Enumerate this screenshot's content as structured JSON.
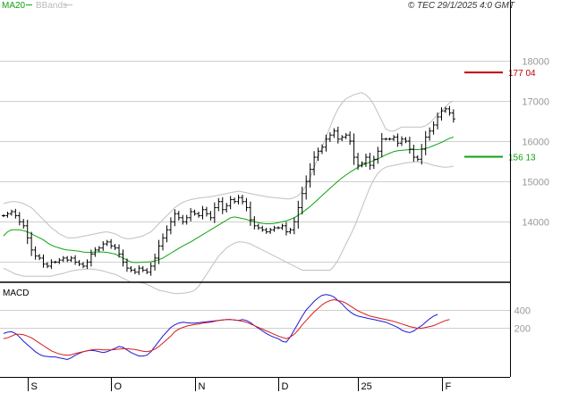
{
  "header": {
    "legend_ma": "MA20",
    "legend_bbands": "BBands",
    "copyright": "© TEC 29/1/2025 4:0 GMT"
  },
  "colors": {
    "bars": "#000000",
    "ma20": "#0fa30f",
    "bbands": "#c0c0c0",
    "resistance": "#c00000",
    "support": "#0fa30f",
    "macd_line": "#1a1ad8",
    "signal_line": "#d81a1a",
    "grid": "#cfcfcf",
    "axis": "#000000",
    "tick_text": "#999999"
  },
  "chart_data": [
    {
      "type": "ohlc",
      "panel": "price",
      "ylim": [
        12500,
        19500
      ],
      "y_ticks": [
        13000,
        14000,
        15000,
        16000,
        17000,
        18000
      ],
      "y_tick_labels": [
        "",
        "14000",
        "15000",
        "16000",
        "17000",
        "18000"
      ],
      "series": [
        {
          "name": "Price",
          "kind": "ohlc",
          "color_key": "bars",
          "close": [
            14150,
            14200,
            14250,
            14150,
            14000,
            13900,
            13600,
            13300,
            13150,
            13100,
            12950,
            12900,
            13000,
            13000,
            13050,
            13100,
            13050,
            13100,
            13000,
            12950,
            12900,
            13000,
            13200,
            13300,
            13350,
            13450,
            13500,
            13400,
            13350,
            13200,
            13000,
            12850,
            12800,
            12750,
            12850,
            12800,
            12750,
            12900,
            13100,
            13400,
            13600,
            13800,
            14000,
            14200,
            14100,
            14000,
            14100,
            14250,
            14200,
            14150,
            14300,
            14200,
            14100,
            14350,
            14500,
            14300,
            14400,
            14550,
            14500,
            14600,
            14500,
            14350,
            14050,
            13900,
            13850,
            13800,
            13750,
            13800,
            13850,
            13850,
            13900,
            13750,
            13800,
            14000,
            14350,
            14700,
            15000,
            15300,
            15600,
            15750,
            15850,
            16050,
            16150,
            16250,
            16050,
            16100,
            16150,
            16000,
            15600,
            15400,
            15450,
            15600,
            15400,
            15550,
            15750,
            16050,
            16050,
            16050,
            16100,
            15950,
            16050,
            16000,
            15800,
            15600,
            15550,
            15800,
            16100,
            16250,
            16400,
            16600,
            16750,
            16800,
            16700,
            16550
          ]
        },
        {
          "name": "MA20",
          "kind": "line",
          "color_key": "ma20",
          "values": [
            13650,
            13750,
            13800,
            13800,
            13800,
            13780,
            13750,
            13700,
            13650,
            13600,
            13550,
            13480,
            13420,
            13380,
            13350,
            13320,
            13300,
            13290,
            13280,
            13270,
            13250,
            13240,
            13240,
            13250,
            13250,
            13250,
            13240,
            13220,
            13200,
            13150,
            13100,
            13050,
            13000,
            12990,
            12990,
            13000,
            13000,
            13010,
            13030,
            13060,
            13100,
            13160,
            13220,
            13280,
            13340,
            13400,
            13450,
            13500,
            13560,
            13620,
            13680,
            13740,
            13800,
            13860,
            13920,
            13980,
            14040,
            14100,
            14120,
            14100,
            14080,
            14060,
            14020,
            14000,
            13980,
            13960,
            13950,
            13950,
            13960,
            13980,
            14000,
            14020,
            14060,
            14100,
            14160,
            14230,
            14300,
            14380,
            14470,
            14560,
            14650,
            14740,
            14830,
            14920,
            15010,
            15090,
            15160,
            15230,
            15290,
            15350,
            15400,
            15440,
            15480,
            15520,
            15560,
            15610,
            15660,
            15700,
            15740,
            15760,
            15770,
            15780,
            15790,
            15790,
            15790,
            15800,
            15820,
            15850,
            15890,
            15930,
            15970,
            16020,
            16070,
            16100
          ]
        },
        {
          "name": "BBands upper",
          "kind": "line",
          "color_key": "bbands",
          "values": [
            14450,
            14480,
            14500,
            14500,
            14480,
            14450,
            14400,
            14350,
            14250,
            14150,
            14050,
            13950,
            13850,
            13780,
            13700,
            13650,
            13600,
            13600,
            13600,
            13620,
            13640,
            13660,
            13680,
            13700,
            13720,
            13740,
            13750,
            13730,
            13700,
            13650,
            13600,
            13580,
            13580,
            13600,
            13620,
            13650,
            13700,
            13750,
            13850,
            13950,
            14050,
            14150,
            14250,
            14350,
            14420,
            14480,
            14520,
            14550,
            14570,
            14590,
            14600,
            14610,
            14620,
            14640,
            14660,
            14680,
            14700,
            14720,
            14740,
            14760,
            14740,
            14720,
            14700,
            14680,
            14660,
            14640,
            14620,
            14610,
            14600,
            14590,
            14580,
            14570,
            14570,
            14600,
            14650,
            14750,
            14900,
            15100,
            15350,
            15600,
            15850,
            16100,
            16350,
            16600,
            16800,
            16950,
            17050,
            17100,
            17150,
            17180,
            17200,
            17150,
            17050,
            16900,
            16700,
            16500,
            16300,
            16250,
            16250,
            16300,
            16350,
            16350,
            16350,
            16350,
            16350,
            16350,
            16380,
            16450,
            16550,
            16650,
            16750,
            16850,
            16950,
            17000
          ]
        },
        {
          "name": "BBands lower",
          "kind": "line",
          "color_key": "bbands",
          "values": [
            12850,
            12800,
            12750,
            12700,
            12680,
            12650,
            12650,
            12650,
            12650,
            12650,
            12650,
            12650,
            12650,
            12680,
            12700,
            12720,
            12750,
            12780,
            12800,
            12810,
            12820,
            12830,
            12830,
            12820,
            12800,
            12780,
            12750,
            12720,
            12700,
            12650,
            12600,
            12550,
            12500,
            12500,
            12500,
            12480,
            12450,
            12400,
            12350,
            12300,
            12280,
            12260,
            12240,
            12220,
            12220,
            12230,
            12240,
            12260,
            12300,
            12400,
            12550,
            12700,
            12850,
            13000,
            13150,
            13250,
            13350,
            13420,
            13470,
            13500,
            13500,
            13480,
            13450,
            13400,
            13350,
            13300,
            13250,
            13200,
            13150,
            13100,
            13050,
            13000,
            12950,
            12900,
            12850,
            12800,
            12800,
            12800,
            12800,
            12800,
            12800,
            12800,
            12800,
            12900,
            13050,
            13250,
            13450,
            13650,
            13850,
            14100,
            14350,
            14600,
            14850,
            15050,
            15200,
            15300,
            15350,
            15380,
            15400,
            15420,
            15440,
            15460,
            15470,
            15480,
            15490,
            15480,
            15460,
            15430,
            15400,
            15380,
            15360,
            15350,
            15360,
            15380
          ]
        },
        {
          "name": "Resistance",
          "kind": "hline",
          "color_key": "resistance",
          "value": 17704,
          "label": "177 04"
        },
        {
          "name": "Support",
          "kind": "hline",
          "color_key": "support",
          "value": 15613,
          "label": "156 13"
        }
      ]
    },
    {
      "type": "line",
      "panel": "macd",
      "title": "MACD",
      "ylim": [
        -350,
        700
      ],
      "y_ticks": [
        200,
        400
      ],
      "y_tick_labels": [
        "200",
        "400"
      ],
      "x_ticks": [
        {
          "index": 6,
          "label": "S"
        },
        {
          "index": 27,
          "label": "O"
        },
        {
          "index": 48,
          "label": "N"
        },
        {
          "index": 69,
          "label": "D"
        },
        {
          "index": 89,
          "label": "25"
        },
        {
          "index": 110,
          "label": "F"
        }
      ],
      "series": [
        {
          "name": "MACD",
          "kind": "line",
          "color_key": "macd_line",
          "values": [
            130,
            145,
            150,
            130,
            90,
            40,
            0,
            -40,
            -80,
            -110,
            -130,
            -135,
            -140,
            -140,
            -150,
            -160,
            -170,
            -150,
            -120,
            -100,
            -80,
            -70,
            -65,
            -70,
            -80,
            -90,
            -80,
            -60,
            -40,
            -20,
            -30,
            -60,
            -90,
            -110,
            -130,
            -130,
            -120,
            -80,
            -20,
            40,
            100,
            150,
            200,
            230,
            250,
            260,
            255,
            250,
            250,
            255,
            260,
            265,
            270,
            275,
            280,
            285,
            290,
            290,
            285,
            280,
            290,
            280,
            255,
            220,
            190,
            160,
            130,
            105,
            85,
            70,
            40,
            30,
            90,
            170,
            250,
            330,
            400,
            450,
            500,
            540,
            570,
            580,
            570,
            550,
            510,
            470,
            420,
            380,
            350,
            330,
            320,
            310,
            300,
            290,
            280,
            270,
            260,
            240,
            220,
            200,
            170,
            150,
            140,
            160,
            190,
            220,
            260,
            300,
            330,
            350
          ]
        },
        {
          "name": "Signal",
          "kind": "line",
          "color_key": "signal_line",
          "values": [
            70,
            80,
            100,
            120,
            120,
            115,
            100,
            80,
            50,
            20,
            -10,
            -40,
            -70,
            -90,
            -105,
            -115,
            -120,
            -115,
            -100,
            -90,
            -80,
            -70,
            -60,
            -55,
            -55,
            -60,
            -60,
            -60,
            -55,
            -50,
            -45,
            -45,
            -50,
            -55,
            -65,
            -75,
            -80,
            -70,
            -50,
            -20,
            20,
            60,
            100,
            150,
            180,
            200,
            215,
            225,
            235,
            240,
            250,
            255,
            260,
            270,
            280,
            285,
            290,
            290,
            285,
            280,
            270,
            260,
            240,
            220,
            200,
            180,
            160,
            140,
            120,
            100,
            85,
            70,
            90,
            120,
            170,
            230,
            280,
            330,
            380,
            420,
            460,
            490,
            510,
            520,
            510,
            500,
            480,
            450,
            420,
            390,
            370,
            350,
            330,
            320,
            310,
            300,
            290,
            280,
            270,
            255,
            240,
            225,
            210,
            200,
            190,
            190,
            200,
            210,
            220,
            240,
            260,
            280,
            290
          ]
        }
      ]
    }
  ]
}
